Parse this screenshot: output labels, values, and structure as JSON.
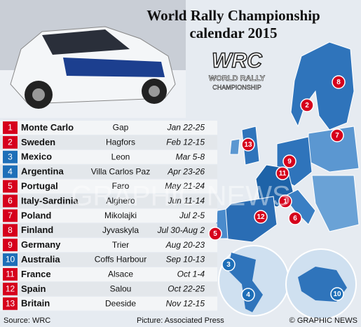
{
  "header": {
    "title_line1": "World Rally Championship",
    "title_line2": "calendar 2015"
  },
  "logo": {
    "mark": "WRC",
    "line1": "WORLD RALLY",
    "line2": "CHAMPIONSHIP"
  },
  "table": {
    "rows": [
      [
        "1",
        "Monte Carlo",
        "Gap",
        "Jan 22-25"
      ],
      [
        "2",
        "Sweden",
        "Hagfors",
        "Feb 12-15"
      ],
      [
        "3",
        "Mexico",
        "Leon",
        "Mar 5-8"
      ],
      [
        "4",
        "Argentina",
        "Villa Carlos Paz",
        "Apr 23-26"
      ],
      [
        "5",
        "Portugal",
        "Faro",
        "May 21-24"
      ],
      [
        "6",
        "Italy-Sardinia",
        "Alghero",
        "Jun 11-14"
      ],
      [
        "7",
        "Poland",
        "Mikolajki",
        "Jul 2-5"
      ],
      [
        "8",
        "Finland",
        "Jyvaskyla",
        "Jul 30-Aug 2"
      ],
      [
        "9",
        "Germany",
        "Trier",
        "Aug 20-23"
      ],
      [
        "10",
        "Australia",
        "Coffs Harbour",
        "Sep 10-13"
      ],
      [
        "11",
        "France",
        "Alsace",
        "Oct 1-4"
      ],
      [
        "12",
        "Spain",
        "Salou",
        "Oct 22-25"
      ],
      [
        "13",
        "Britain",
        "Deeside",
        "Nov 12-15"
      ]
    ],
    "colors": [
      "#d6001c",
      "#d6001c",
      "#1e6fb8",
      "#1e6fb8",
      "#d6001c",
      "#d6001c",
      "#d6001c",
      "#d6001c",
      "#d6001c",
      "#1e6fb8",
      "#d6001c",
      "#d6001c",
      "#d6001c"
    ]
  },
  "map": {
    "markers": [
      {
        "label": "8",
        "color": "#d6001c"
      },
      {
        "label": "2",
        "color": "#d6001c"
      },
      {
        "label": "7",
        "color": "#d6001c"
      },
      {
        "label": "13",
        "color": "#d6001c"
      },
      {
        "label": "9",
        "color": "#d6001c"
      },
      {
        "label": "11",
        "color": "#d6001c"
      },
      {
        "label": "1",
        "color": "#d6001c"
      },
      {
        "label": "12",
        "color": "#d6001c"
      },
      {
        "label": "6",
        "color": "#d6001c"
      },
      {
        "label": "5",
        "color": "#d6001c"
      },
      {
        "label": "3",
        "color": "#1e6fb8"
      },
      {
        "label": "4",
        "color": "#1e6fb8"
      },
      {
        "label": "10",
        "color": "#1e6fb8"
      }
    ]
  },
  "watermark": "GRAPHIC NEWS",
  "footer": {
    "source": "Source: WRC",
    "picture": "Picture: Associated Press",
    "copyright": "© GRAPHIC NEWS"
  }
}
